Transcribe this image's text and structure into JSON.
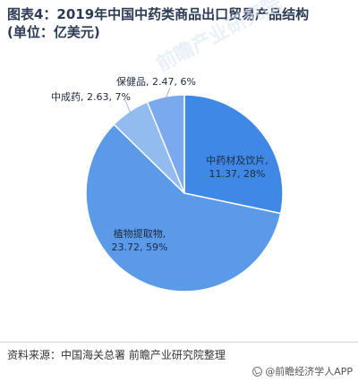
{
  "title_line1": "图表4：2019年中国中药类商品出口贸易产品结构",
  "title_line2": "(单位：亿美元)",
  "chart_data": {
    "type": "pie",
    "slices": [
      {
        "name": "中药材及饮片",
        "value": 11.37,
        "percent": "28%",
        "color": "#3f88e6"
      },
      {
        "name": "植物提取物",
        "value": 23.72,
        "percent": "59%",
        "color": "#5b9ae8"
      },
      {
        "name": "中成药",
        "value": 2.63,
        "percent": "7%",
        "color": "#92bbf0"
      },
      {
        "name": "保健品",
        "value": 2.47,
        "percent": "6%",
        "color": "#7aaaed"
      }
    ],
    "labels": [
      {
        "line1": "中药材及饮片,",
        "line2": "11.37, 28%"
      },
      {
        "line1": "植物提取物,",
        "line2": "23.72, 59%"
      },
      {
        "line1": "中成药, 2.63, 7%",
        "line2": ""
      },
      {
        "line1": "保健品, 2.47, 6%",
        "line2": ""
      }
    ]
  },
  "source": "资料来源：中国海关总署 前瞻产业研究院整理",
  "brand": "@前瞻经济学人APP",
  "brand_icon": "brand-logo-icon"
}
